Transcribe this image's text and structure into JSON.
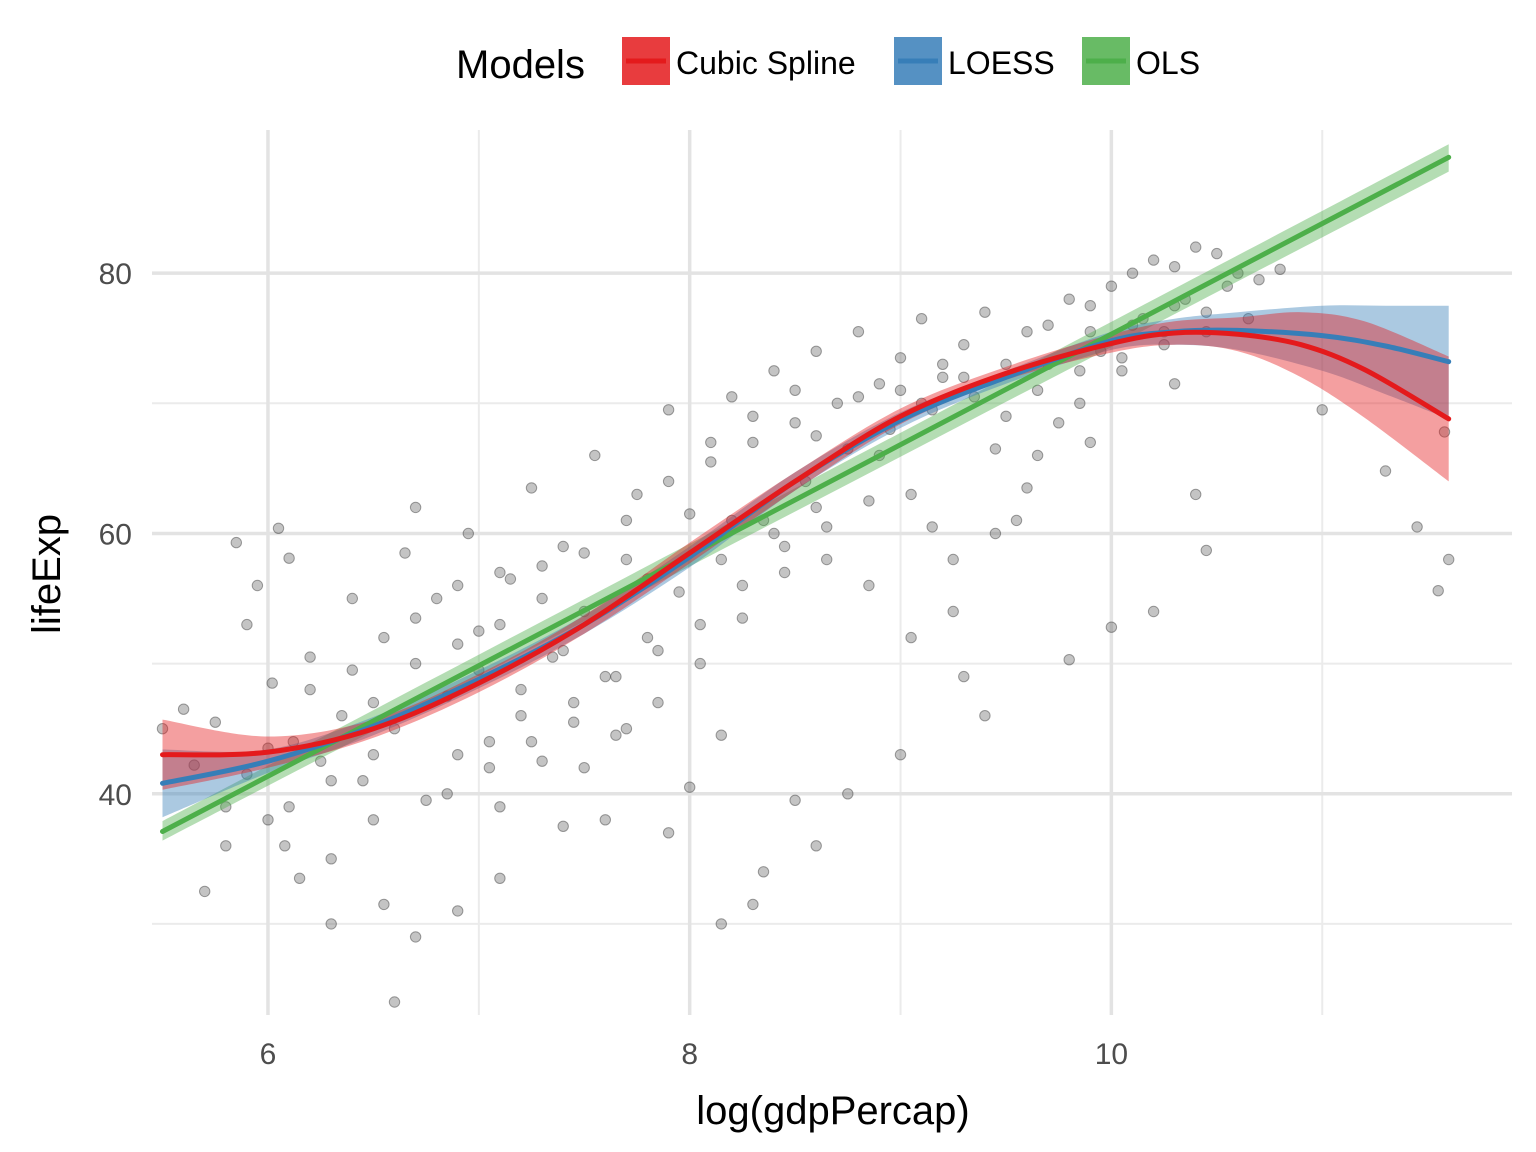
{
  "chart_data": {
    "type": "scatter",
    "title": "",
    "xlabel": "log(gdpPercap)",
    "ylabel": "lifeExp",
    "xlim": [
      5.45,
      11.9
    ],
    "ylim": [
      23.0,
      91.0
    ],
    "x_ticks": [
      6,
      8,
      10
    ],
    "y_ticks": [
      40,
      60,
      80
    ],
    "x_minor_ticks": [
      7,
      9,
      11
    ],
    "y_minor_ticks": [
      30,
      50,
      70
    ],
    "grid": true,
    "point_color": "#555555",
    "legend": {
      "title": "Models",
      "placement": "top",
      "entries": [
        {
          "label": "Cubic Spline",
          "color": "#e41a1c"
        },
        {
          "label": "LOESS",
          "color": "#377eb8"
        },
        {
          "label": "OLS",
          "color": "#4daf4a"
        }
      ]
    },
    "series": [
      {
        "name": "OLS",
        "color": "#4daf4a",
        "band_color": "#4daf4a",
        "x": [
          5.5,
          11.6
        ],
        "y": [
          37.1,
          88.9
        ],
        "lower": [
          36.4,
          87.8
        ],
        "upper": [
          37.9,
          89.9
        ]
      },
      {
        "name": "LOESS",
        "color": "#377eb8",
        "band_color": "#377eb8",
        "x": [
          5.5,
          6.0,
          6.5,
          7.0,
          7.5,
          8.0,
          8.5,
          9.0,
          9.5,
          10.0,
          10.3,
          10.6,
          11.0,
          11.3,
          11.6
        ],
        "y": [
          40.8,
          42.5,
          45.2,
          48.8,
          53.0,
          58.2,
          64.0,
          68.7,
          72.0,
          74.8,
          75.5,
          75.6,
          75.2,
          74.4,
          73.2
        ],
        "lower": [
          38.2,
          41.6,
          44.5,
          48.1,
          52.3,
          57.4,
          63.3,
          68.1,
          71.5,
          74.1,
          74.5,
          74.1,
          72.5,
          70.7,
          68.8
        ],
        "upper": [
          43.4,
          43.4,
          45.9,
          49.5,
          53.7,
          59.0,
          64.7,
          69.3,
          72.5,
          75.5,
          76.5,
          77.0,
          77.5,
          77.5,
          77.5
        ]
      },
      {
        "name": "Cubic Spline",
        "color": "#e41a1c",
        "band_color": "#e41a1c",
        "x": [
          5.5,
          6.0,
          6.5,
          7.0,
          7.5,
          8.0,
          8.5,
          9.0,
          9.5,
          10.0,
          10.3,
          10.6,
          10.9,
          11.2,
          11.6
        ],
        "y": [
          43.0,
          43.2,
          45.0,
          48.5,
          53.0,
          58.5,
          64.0,
          69.0,
          72.3,
          74.6,
          75.4,
          75.3,
          74.5,
          72.6,
          68.8
        ],
        "lower": [
          40.3,
          42.0,
          44.3,
          47.8,
          52.3,
          57.7,
          63.3,
          68.4,
          71.8,
          73.9,
          74.5,
          74.0,
          72.0,
          68.9,
          64.0
        ],
        "upper": [
          45.7,
          44.4,
          45.7,
          49.2,
          53.7,
          59.3,
          64.7,
          69.6,
          72.8,
          75.3,
          76.3,
          76.6,
          77.0,
          76.3,
          73.6
        ]
      }
    ],
    "points": [
      [
        5.5,
        45.0
      ],
      [
        5.6,
        46.5
      ],
      [
        5.65,
        42.2
      ],
      [
        5.7,
        32.5
      ],
      [
        5.75,
        45.5
      ],
      [
        5.8,
        36.0
      ],
      [
        5.85,
        59.3
      ],
      [
        5.9,
        53.0
      ],
      [
        5.95,
        56.0
      ],
      [
        5.8,
        39.0
      ],
      [
        5.9,
        41.5
      ],
      [
        6.0,
        43.5
      ],
      [
        6.02,
        48.5
      ],
      [
        6.05,
        60.4
      ],
      [
        6.1,
        58.1
      ],
      [
        6.08,
        36.0
      ],
      [
        6.12,
        44.0
      ],
      [
        6.15,
        33.5
      ],
      [
        6.2,
        48.0
      ],
      [
        6.25,
        42.5
      ],
      [
        6.3,
        35.0
      ],
      [
        6.35,
        46.0
      ],
      [
        6.4,
        49.5
      ],
      [
        6.45,
        41.0
      ],
      [
        6.5,
        38.0
      ],
      [
        6.55,
        52.0
      ],
      [
        6.6,
        45.0
      ],
      [
        6.65,
        58.5
      ],
      [
        6.7,
        62.0
      ],
      [
        6.75,
        39.5
      ],
      [
        6.8,
        55.0
      ],
      [
        6.85,
        47.5
      ],
      [
        6.9,
        43.0
      ],
      [
        6.95,
        60.0
      ],
      [
        7.0,
        52.5
      ],
      [
        7.05,
        44.0
      ],
      [
        7.1,
        39.0
      ],
      [
        7.15,
        56.5
      ],
      [
        7.2,
        48.0
      ],
      [
        7.25,
        63.5
      ],
      [
        7.3,
        42.5
      ],
      [
        7.35,
        50.5
      ],
      [
        7.4,
        59.0
      ],
      [
        7.45,
        45.5
      ],
      [
        7.5,
        54.0
      ],
      [
        7.55,
        66.0
      ],
      [
        7.6,
        49.0
      ],
      [
        7.65,
        44.5
      ],
      [
        7.7,
        58.0
      ],
      [
        7.75,
        63.0
      ],
      [
        7.8,
        52.0
      ],
      [
        7.85,
        47.0
      ],
      [
        7.9,
        69.5
      ],
      [
        7.95,
        55.5
      ],
      [
        8.0,
        61.5
      ],
      [
        8.05,
        50.0
      ],
      [
        8.1,
        65.5
      ],
      [
        8.15,
        58.0
      ],
      [
        8.2,
        70.5
      ],
      [
        8.25,
        53.5
      ],
      [
        8.3,
        67.0
      ],
      [
        8.35,
        61.0
      ],
      [
        8.4,
        72.5
      ],
      [
        8.45,
        57.0
      ],
      [
        8.5,
        68.5
      ],
      [
        8.55,
        64.0
      ],
      [
        8.6,
        74.0
      ],
      [
        8.65,
        60.5
      ],
      [
        8.7,
        70.0
      ],
      [
        8.75,
        66.5
      ],
      [
        8.8,
        75.5
      ],
      [
        8.85,
        62.5
      ],
      [
        8.9,
        71.5
      ],
      [
        8.95,
        68.0
      ],
      [
        9.0,
        73.5
      ],
      [
        9.05,
        63.0
      ],
      [
        9.1,
        76.5
      ],
      [
        9.15,
        69.5
      ],
      [
        9.2,
        72.0
      ],
      [
        9.25,
        58.0
      ],
      [
        9.3,
        74.5
      ],
      [
        9.35,
        70.5
      ],
      [
        9.4,
        77.0
      ],
      [
        9.45,
        66.5
      ],
      [
        9.5,
        73.0
      ],
      [
        9.55,
        61.0
      ],
      [
        9.6,
        75.5
      ],
      [
        9.65,
        71.0
      ],
      [
        9.7,
        76.0
      ],
      [
        9.75,
        68.5
      ],
      [
        9.8,
        78.0
      ],
      [
        9.85,
        72.5
      ],
      [
        9.9,
        77.5
      ],
      [
        9.95,
        74.0
      ],
      [
        10.0,
        79.0
      ],
      [
        10.05,
        73.5
      ],
      [
        10.1,
        80.0
      ],
      [
        10.15,
        76.5
      ],
      [
        10.2,
        81.0
      ],
      [
        10.25,
        75.5
      ],
      [
        10.3,
        80.5
      ],
      [
        10.35,
        78.0
      ],
      [
        10.4,
        82.0
      ],
      [
        10.45,
        77.0
      ],
      [
        10.5,
        81.5
      ],
      [
        10.55,
        79.0
      ],
      [
        10.6,
        80.0
      ],
      [
        10.7,
        79.5
      ],
      [
        10.8,
        80.3
      ],
      [
        11.0,
        69.5
      ],
      [
        11.3,
        64.8
      ],
      [
        11.45,
        60.5
      ],
      [
        11.55,
        55.6
      ],
      [
        11.6,
        58.0
      ],
      [
        11.58,
        67.8
      ],
      [
        6.6,
        24.0
      ],
      [
        8.15,
        30.0
      ],
      [
        8.3,
        31.5
      ],
      [
        8.35,
        34.0
      ],
      [
        8.5,
        39.5
      ],
      [
        8.6,
        36.0
      ],
      [
        8.75,
        40.0
      ],
      [
        9.0,
        43.0
      ],
      [
        9.4,
        46.0
      ],
      [
        9.3,
        49.0
      ],
      [
        9.8,
        50.3
      ],
      [
        10.0,
        52.8
      ],
      [
        10.2,
        54.0
      ],
      [
        10.4,
        63.0
      ],
      [
        10.45,
        58.7
      ],
      [
        9.15,
        60.5
      ],
      [
        9.6,
        63.5
      ],
      [
        9.9,
        67.0
      ],
      [
        10.3,
        71.5
      ],
      [
        6.3,
        30.0
      ],
      [
        6.55,
        31.5
      ],
      [
        6.7,
        29.0
      ],
      [
        6.9,
        31.0
      ],
      [
        7.1,
        33.5
      ],
      [
        7.4,
        37.5
      ],
      [
        7.6,
        38.0
      ],
      [
        7.9,
        37.0
      ],
      [
        8.0,
        40.5
      ],
      [
        8.15,
        44.5
      ],
      [
        7.0,
        49.5
      ],
      [
        7.2,
        46.0
      ],
      [
        7.5,
        42.0
      ],
      [
        7.7,
        45.0
      ],
      [
        7.3,
        55.0
      ],
      [
        6.4,
        55.0
      ],
      [
        6.2,
        50.5
      ],
      [
        6.5,
        47.0
      ],
      [
        6.7,
        50.0
      ],
      [
        6.9,
        51.5
      ],
      [
        7.1,
        53.0
      ],
      [
        7.4,
        51.0
      ],
      [
        7.8,
        56.5
      ],
      [
        8.2,
        61.0
      ],
      [
        8.4,
        60.0
      ],
      [
        8.6,
        62.0
      ],
      [
        8.9,
        66.0
      ],
      [
        9.1,
        70.0
      ],
      [
        9.3,
        72.0
      ],
      [
        9.5,
        69.0
      ],
      [
        9.7,
        73.0
      ],
      [
        9.9,
        75.5
      ],
      [
        10.1,
        76.0
      ],
      [
        10.3,
        77.5
      ],
      [
        8.8,
        70.5
      ],
      [
        9.0,
        71.0
      ],
      [
        9.2,
        73.0
      ],
      [
        8.6,
        67.5
      ],
      [
        8.5,
        71.0
      ],
      [
        8.3,
        69.0
      ],
      [
        8.1,
        67.0
      ],
      [
        7.9,
        64.0
      ],
      [
        7.7,
        61.0
      ],
      [
        7.5,
        58.5
      ],
      [
        7.3,
        57.5
      ],
      [
        7.1,
        57.0
      ],
      [
        6.9,
        56.0
      ],
      [
        6.7,
        53.5
      ],
      [
        6.5,
        43.0
      ],
      [
        6.3,
        41.0
      ],
      [
        6.1,
        39.0
      ],
      [
        6.0,
        38.0
      ],
      [
        6.85,
        40.0
      ],
      [
        7.05,
        42.0
      ],
      [
        7.25,
        44.0
      ],
      [
        7.45,
        47.0
      ],
      [
        7.65,
        49.0
      ],
      [
        7.85,
        51.0
      ],
      [
        8.05,
        53.0
      ],
      [
        8.25,
        56.0
      ],
      [
        8.45,
        59.0
      ],
      [
        8.65,
        58.0
      ],
      [
        8.85,
        56.0
      ],
      [
        9.05,
        52.0
      ],
      [
        9.25,
        54.0
      ],
      [
        9.45,
        60.0
      ],
      [
        9.65,
        66.0
      ],
      [
        9.85,
        70.0
      ],
      [
        10.05,
        72.5
      ],
      [
        10.25,
        74.5
      ],
      [
        10.45,
        75.5
      ],
      [
        10.65,
        76.5
      ]
    ]
  }
}
